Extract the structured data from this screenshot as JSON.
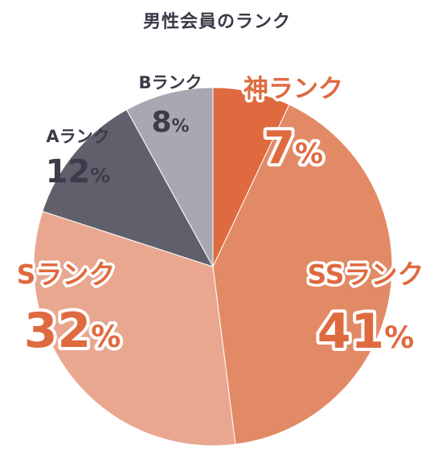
{
  "chart_data": {
    "type": "pie",
    "title": "男性会員のランク",
    "slices": [
      {
        "label": "神ランク",
        "value": 7,
        "value_text": "7",
        "color": "#df6a40",
        "label_color": "#df6a40",
        "value_color": "#df6a40"
      },
      {
        "label": "SSランク",
        "value": 41,
        "value_text": "41",
        "color": "#e28a66",
        "label_color": "#df6a40",
        "value_color": "#df6a40"
      },
      {
        "label": "Sランク",
        "value": 32,
        "value_text": "32",
        "color": "#e9a790",
        "label_color": "#df6a40",
        "value_color": "#df6a40"
      },
      {
        "label": "Aランク",
        "value": 12,
        "value_text": "12",
        "color": "#60606c",
        "label_color": "#3c3c4a",
        "value_color": "#3c3c4a"
      },
      {
        "label": "Bランク",
        "value": 8,
        "value_text": "8",
        "color": "#a8a8b2",
        "label_color": "#3c3c4a",
        "value_color": "#3c3c4a"
      }
    ],
    "unit": "%",
    "start": "12 o'clock",
    "direction": "clockwise"
  }
}
